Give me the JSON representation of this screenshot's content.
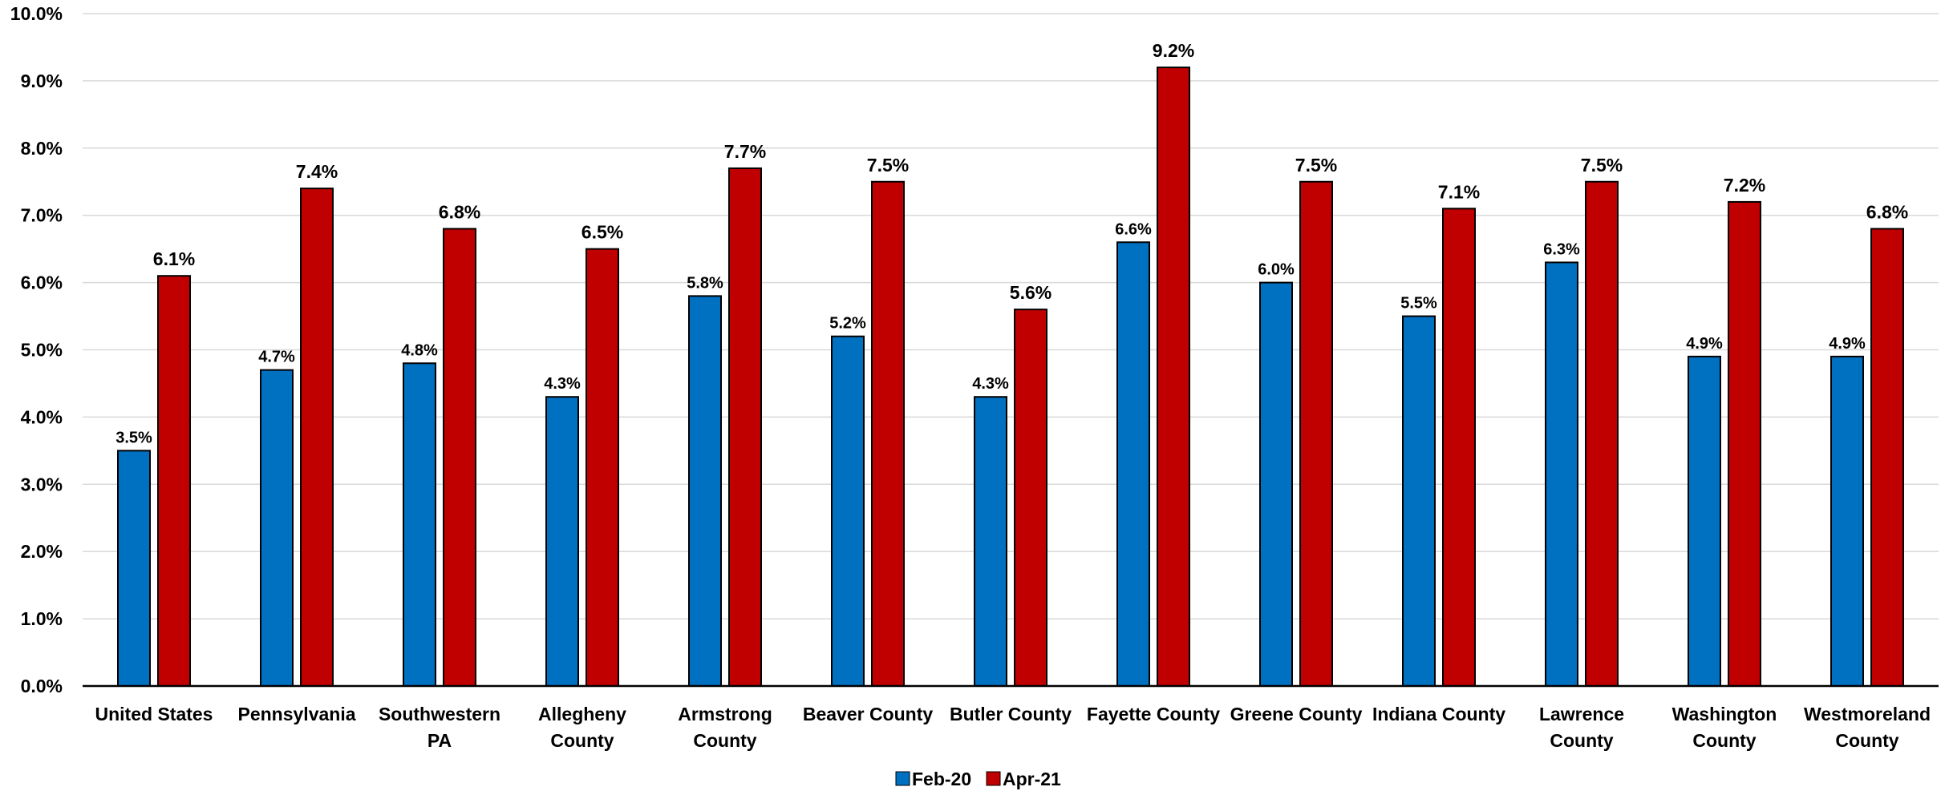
{
  "chart_data": {
    "type": "bar",
    "categories": [
      [
        "United States"
      ],
      [
        "Pennsylvania"
      ],
      [
        "Southwestern",
        "PA"
      ],
      [
        "Allegheny",
        "County"
      ],
      [
        "Armstrong",
        "County"
      ],
      [
        "Beaver County"
      ],
      [
        "Butler County"
      ],
      [
        "Fayette County"
      ],
      [
        "Greene County"
      ],
      [
        "Indiana County"
      ],
      [
        "Lawrence",
        "County"
      ],
      [
        "Washington",
        "County"
      ],
      [
        "Westmoreland",
        "County"
      ]
    ],
    "series": [
      {
        "name": "Feb-20",
        "color": "#0070C0",
        "values": [
          3.5,
          4.7,
          4.8,
          4.3,
          5.8,
          5.2,
          4.3,
          6.6,
          6.0,
          5.5,
          6.3,
          4.9,
          4.9
        ],
        "labels": [
          "3.5%",
          "4.7%",
          "4.8%",
          "4.3%",
          "5.8%",
          "5.2%",
          "4.3%",
          "6.6%",
          "6.0%",
          "5.5%",
          "6.3%",
          "4.9%",
          "4.9%"
        ]
      },
      {
        "name": "Apr-21",
        "color": "#C00000",
        "values": [
          6.1,
          7.4,
          6.8,
          6.5,
          7.7,
          7.5,
          5.6,
          9.2,
          7.5,
          7.1,
          7.5,
          7.2,
          6.8
        ],
        "labels": [
          "6.1%",
          "7.4%",
          "6.8%",
          "6.5%",
          "7.7%",
          "7.5%",
          "5.6%",
          "9.2%",
          "7.5%",
          "7.1%",
          "7.5%",
          "7.2%",
          "6.8%"
        ]
      }
    ],
    "ylim": [
      0,
      10
    ],
    "y_ticks": [
      "0.0%",
      "1.0%",
      "2.0%",
      "3.0%",
      "4.0%",
      "5.0%",
      "6.0%",
      "7.0%",
      "8.0%",
      "9.0%",
      "10.0%"
    ],
    "title": "",
    "xlabel": "",
    "ylabel": "",
    "grid": true,
    "legend": "bottom-center"
  }
}
